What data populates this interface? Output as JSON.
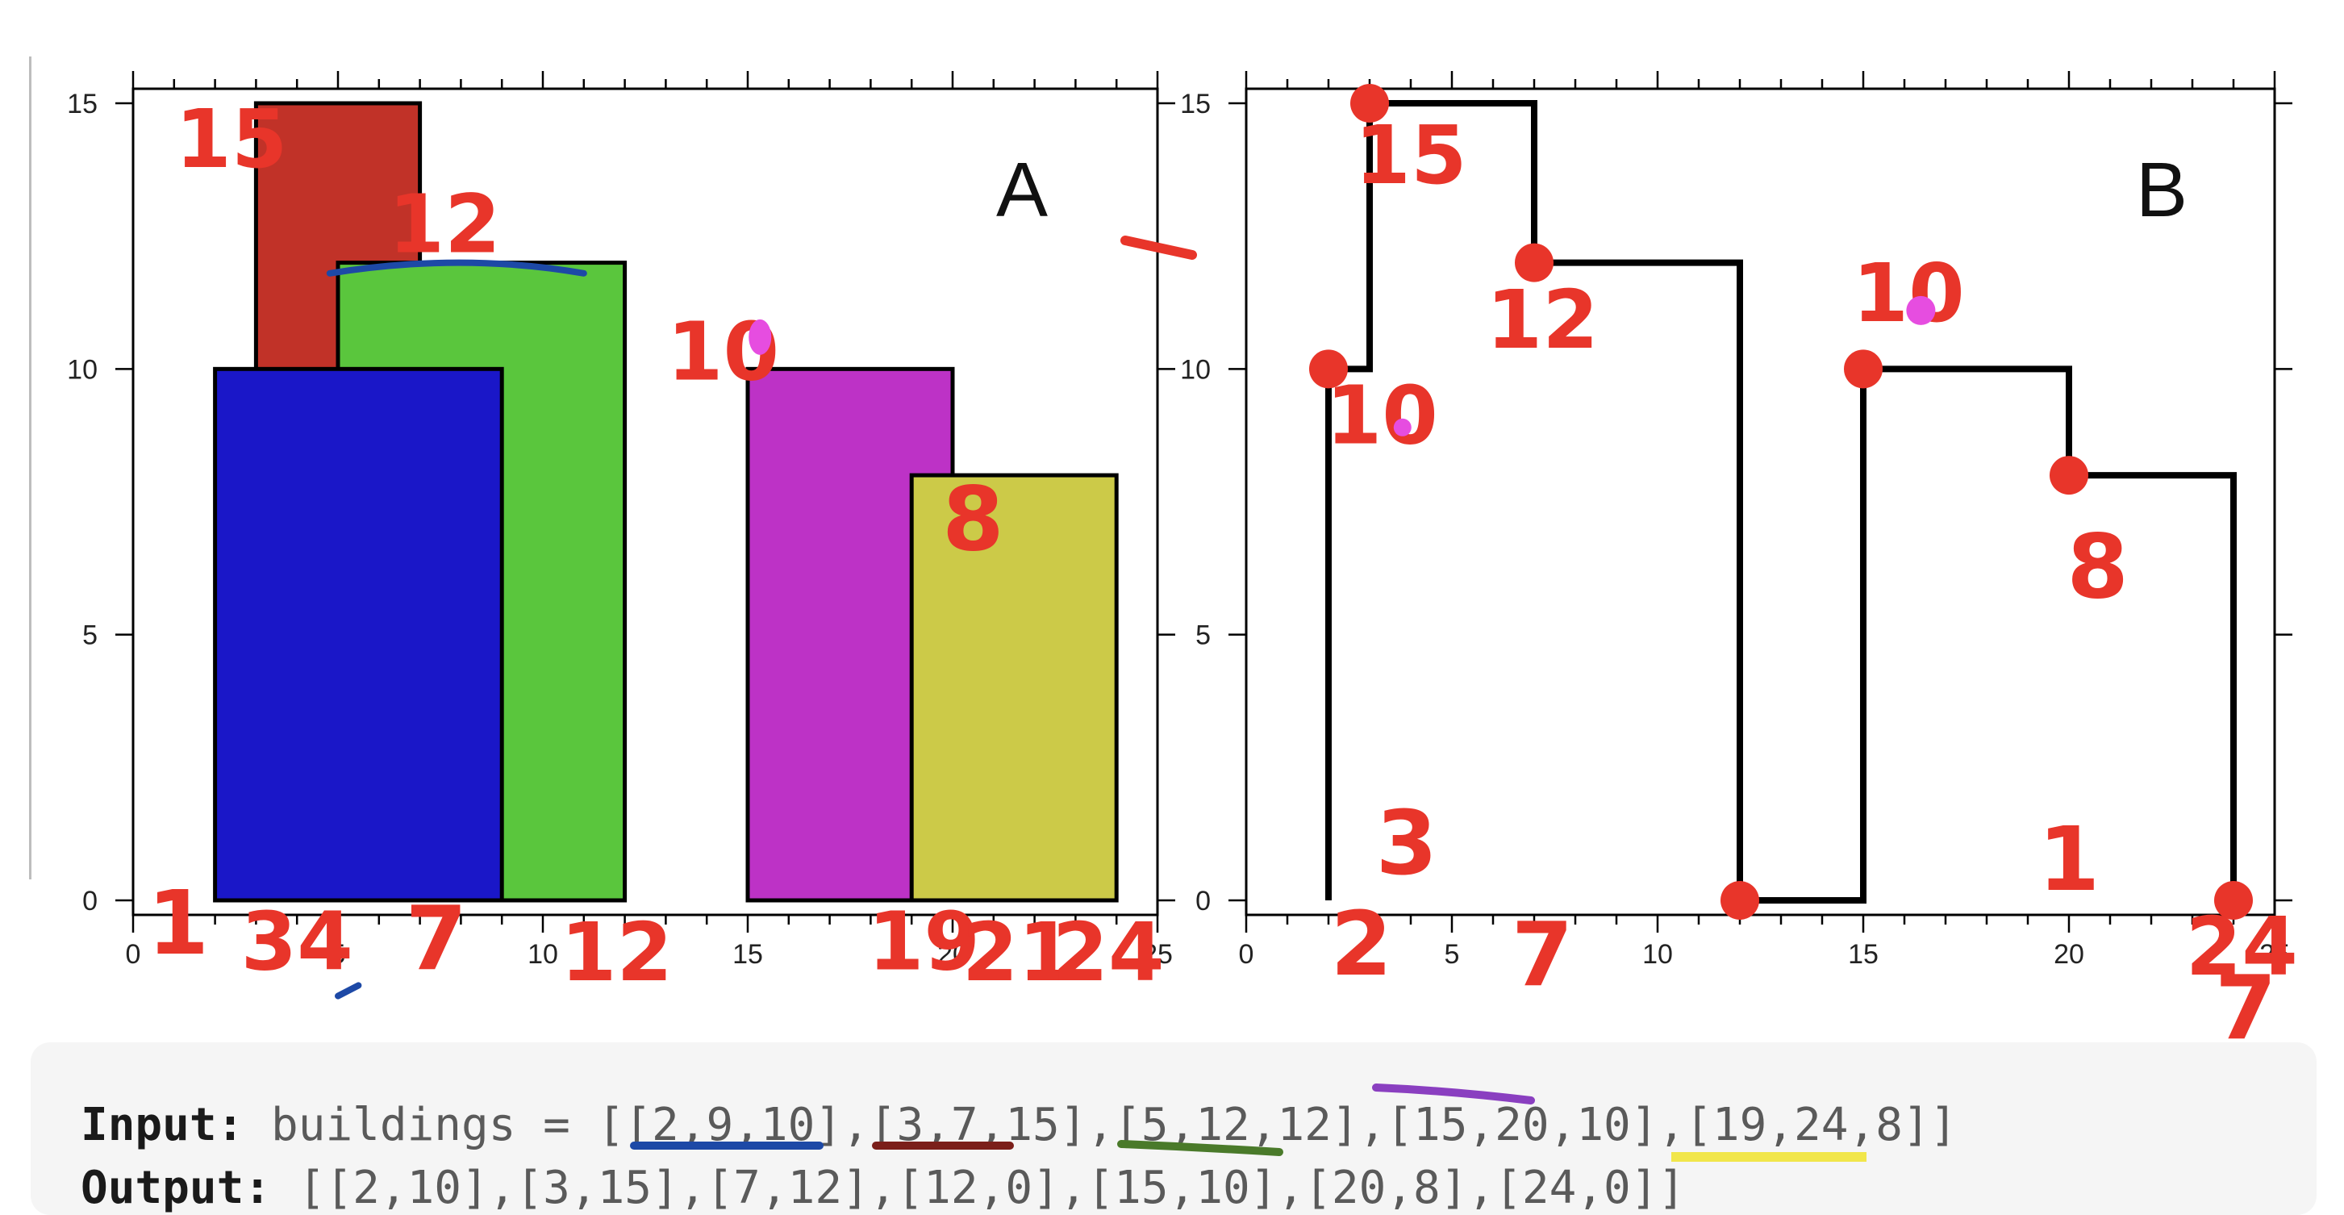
{
  "chart_data": [
    {
      "type": "bar",
      "panel_label": "A",
      "xlim": [
        0,
        25
      ],
      "ylim": [
        0,
        15
      ],
      "x_ticks": [
        "0",
        "5",
        "10",
        "15",
        "20",
        "25"
      ],
      "y_ticks": [
        "0",
        "5",
        "10",
        "15"
      ],
      "buildings": [
        {
          "left": 3,
          "right": 7,
          "height": 15,
          "color": "#c13228"
        },
        {
          "left": 5,
          "right": 12,
          "height": 12,
          "color": "#5ac63d"
        },
        {
          "left": 2,
          "right": 9,
          "height": 10,
          "color": "#1a17c8"
        },
        {
          "left": 15,
          "right": 20,
          "height": 10,
          "color": "#bd32c6"
        },
        {
          "left": 19,
          "right": 24,
          "height": 8,
          "color": "#ccca48"
        }
      ]
    },
    {
      "type": "line",
      "panel_label": "B",
      "xlim": [
        0,
        25
      ],
      "ylim": [
        0,
        15
      ],
      "x_ticks": [
        "0",
        "5",
        "10",
        "15",
        "20",
        "25"
      ],
      "y_ticks": [
        "0",
        "5",
        "10",
        "15"
      ],
      "skyline_points": [
        [
          2,
          10
        ],
        [
          3,
          15
        ],
        [
          7,
          12
        ],
        [
          12,
          0
        ],
        [
          15,
          10
        ],
        [
          20,
          8
        ],
        [
          24,
          0
        ]
      ]
    }
  ],
  "annotations": {
    "panel_a": [
      {
        "text": "15",
        "x": 2.4,
        "y": 13.8,
        "color": "#e8352a"
      },
      {
        "text": "12",
        "x": 7.6,
        "y": 12.2,
        "color": "#e8352a"
      },
      {
        "text": "10",
        "x": 14.4,
        "y": 9.8,
        "color": "#e8352a"
      },
      {
        "text": "8",
        "x": 20.5,
        "y": 6.6,
        "color": "#e8352a"
      },
      {
        "text": "1",
        "x": 1.1,
        "y": -1.0,
        "color": "#e8352a"
      },
      {
        "text": "34",
        "x": 4.0,
        "y": -1.3,
        "color": "#e8352a"
      },
      {
        "text": "7",
        "x": 7.4,
        "y": -1.3,
        "color": "#e8352a"
      },
      {
        "text": "12",
        "x": 11.8,
        "y": -1.5,
        "color": "#1d49a6"
      },
      {
        "text": "19",
        "x": 19.3,
        "y": -1.3,
        "color": "#e8352a"
      },
      {
        "text": "21",
        "x": 21.6,
        "y": -1.5,
        "color": "#e8352a"
      },
      {
        "text": "24",
        "x": 23.8,
        "y": -1.5,
        "color": "#e8352a"
      }
    ],
    "panel_b": [
      {
        "text": "15",
        "x": 4.0,
        "y": 13.5,
        "color": "#e8352a"
      },
      {
        "text": "12",
        "x": 7.2,
        "y": 10.4,
        "color": "#e8352a"
      },
      {
        "text": "10",
        "x": 3.3,
        "y": 8.6,
        "color": "#e8352a"
      },
      {
        "text": "10",
        "x": 16.1,
        "y": 10.9,
        "color": "#e8352a"
      },
      {
        "text": "8",
        "x": 20.7,
        "y": 5.7,
        "color": "#e8352a"
      },
      {
        "text": "3",
        "x": 3.9,
        "y": 0.5,
        "color": "#e8352a"
      },
      {
        "text": "2",
        "x": 2.8,
        "y": -1.4,
        "color": "#e8352a"
      },
      {
        "text": "7",
        "x": 7.2,
        "y": -1.6,
        "color": "#e8352a"
      },
      {
        "text": "1",
        "x": 20.0,
        "y": 0.2,
        "color": "#e8352a"
      },
      {
        "text": "24",
        "x": 24.2,
        "y": -1.4,
        "color": "#e8352a"
      },
      {
        "text": "7",
        "x": 24.3,
        "y": -2.6,
        "color": "#e8352a"
      }
    ]
  },
  "marker_color": "#e8352a",
  "example": {
    "input_label": "Input:",
    "input_text": " buildings = [[2,9,10],[3,7,15],[5,12,12],[15,20,10],[19,24,8]]",
    "output_label": "Output:",
    "output_text": " [[2,10],[3,15],[7,12],[12,0],[15,10],[20,8],[24,0]]",
    "underline_colors": [
      "#1d49a6",
      "#7b1f1a",
      "#4a7a2a",
      "#8a3fc0",
      "#f1e64a"
    ]
  }
}
